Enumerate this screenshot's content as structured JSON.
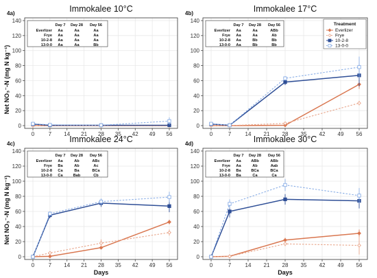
{
  "figure": {
    "ylabel": "Net NO₃⁻-N (mg N kg⁻¹)",
    "xlabel": "Days",
    "legend": {
      "title": "Treatment",
      "entries": [
        "Everlizer",
        "Frye",
        "10-2-8",
        "13-0-0"
      ]
    }
  },
  "chart_data": [
    {
      "type": "line",
      "tag": "4a)",
      "title": "Immokalee 10°C",
      "x": [
        0,
        7,
        28,
        56
      ],
      "xticks": [
        0,
        7,
        14,
        21,
        28,
        35,
        42,
        49,
        56
      ],
      "ylim": [
        0,
        140
      ],
      "yticks": [
        0,
        20,
        40,
        60,
        80,
        100,
        120,
        140
      ],
      "series": [
        {
          "name": "Everlizer",
          "values": [
            0,
            0,
            0,
            0
          ],
          "err": [
            0.5,
            0.5,
            0.5,
            0.5
          ]
        },
        {
          "name": "Frye",
          "values": [
            0,
            0,
            0,
            0
          ],
          "err": [
            0.5,
            0.5,
            0.5,
            0.5
          ]
        },
        {
          "name": "10-2-8",
          "values": [
            2,
            0.5,
            0.5,
            0.5
          ],
          "err": [
            1.5,
            0.8,
            0.8,
            1
          ]
        },
        {
          "name": "13-0-0",
          "values": [
            2.5,
            1,
            0.5,
            6
          ],
          "err": [
            1.5,
            0.8,
            0.8,
            5
          ]
        }
      ],
      "letters": {
        "columns": [
          "Day 7",
          "Day 28",
          "Day 56"
        ],
        "rows": [
          {
            "treatment": "Everlizer",
            "values": [
              "Aa",
              "Aa",
              "Aa"
            ]
          },
          {
            "treatment": "Frye",
            "values": [
              "Aa",
              "Aa",
              "Aa"
            ]
          },
          {
            "treatment": "10-2-8",
            "values": [
              "Aa",
              "Aa",
              "Aa"
            ]
          },
          {
            "treatment": "13-0-0",
            "values": [
              "Aa",
              "Aa",
              "Bb"
            ]
          }
        ]
      }
    },
    {
      "type": "line",
      "tag": "4b)",
      "title": "Immokalee 17°C",
      "x": [
        0,
        7,
        28,
        56
      ],
      "xticks": [
        0,
        7,
        14,
        21,
        28,
        35,
        42,
        49,
        56
      ],
      "ylim": [
        0,
        140
      ],
      "yticks": [
        0,
        20,
        40,
        60,
        80,
        100,
        120,
        140
      ],
      "series": [
        {
          "name": "Everlizer",
          "values": [
            0,
            0,
            0.5,
            55
          ],
          "err": [
            0.5,
            0.5,
            1,
            6
          ]
        },
        {
          "name": "Frye",
          "values": [
            0,
            0,
            3,
            30
          ],
          "err": [
            0.5,
            0.5,
            2,
            3
          ]
        },
        {
          "name": "10-2-8",
          "values": [
            2,
            0.5,
            58,
            67
          ],
          "err": [
            1.5,
            0.8,
            4,
            15
          ]
        },
        {
          "name": "13-0-0",
          "values": [
            2.5,
            0.5,
            63,
            78
          ],
          "err": [
            1.5,
            0.8,
            3,
            14
          ]
        }
      ],
      "letters": {
        "columns": [
          "Day 7",
          "Day 28",
          "Day 56"
        ],
        "rows": [
          {
            "treatment": "Everlizer",
            "values": [
              "Aa",
              "Aa",
              "ABb"
            ]
          },
          {
            "treatment": "Frye",
            "values": [
              "Aa",
              "Aa",
              "Ab"
            ]
          },
          {
            "treatment": "10-2-8",
            "values": [
              "Aa",
              "Bb",
              "Bb"
            ]
          },
          {
            "treatment": "13-0-0",
            "values": [
              "Aa",
              "Bb",
              "Bb"
            ]
          }
        ]
      }
    },
    {
      "type": "line",
      "tag": "4c)",
      "title": "Immokalee 24°C",
      "x": [
        0,
        7,
        28,
        56
      ],
      "xticks": [
        0,
        7,
        14,
        21,
        28,
        35,
        42,
        49,
        56
      ],
      "ylim": [
        0,
        140
      ],
      "yticks": [
        0,
        20,
        40,
        60,
        80,
        100,
        120,
        140
      ],
      "series": [
        {
          "name": "Everlizer",
          "values": [
            0,
            0.5,
            12,
            46
          ],
          "err": [
            0.5,
            1,
            2,
            3
          ]
        },
        {
          "name": "Frye",
          "values": [
            0,
            5,
            18,
            32
          ],
          "err": [
            0.5,
            2,
            5,
            4
          ]
        },
        {
          "name": "10-2-8",
          "values": [
            0,
            55,
            71,
            67
          ],
          "err": [
            0.5,
            4,
            5,
            8
          ]
        },
        {
          "name": "13-0-0",
          "values": [
            0,
            57,
            73,
            79
          ],
          "err": [
            0.5,
            3,
            4,
            7
          ]
        }
      ],
      "letters": {
        "columns": [
          "Day 7",
          "Day 28",
          "Day 56"
        ],
        "rows": [
          {
            "treatment": "Everlizer",
            "values": [
              "Aa",
              "Ab",
              "ABc"
            ]
          },
          {
            "treatment": "Frye",
            "values": [
              "Ba",
              "Ab",
              "Ac"
            ]
          },
          {
            "treatment": "10-2-8",
            "values": [
              "Ca",
              "Ba",
              "BCa"
            ]
          },
          {
            "treatment": "13-0-0",
            "values": [
              "Ca",
              "Bab",
              "Cb"
            ]
          }
        ]
      }
    },
    {
      "type": "line",
      "tag": "4d)",
      "title": "Immokalee 30°C",
      "x": [
        0,
        7,
        28,
        56
      ],
      "xticks": [
        0,
        7,
        14,
        21,
        28,
        35,
        42,
        49,
        56
      ],
      "ylim": [
        0,
        140
      ],
      "yticks": [
        0,
        20,
        40,
        60,
        80,
        100,
        120,
        140
      ],
      "series": [
        {
          "name": "Everlizer",
          "values": [
            0,
            0.5,
            22,
            31
          ],
          "err": [
            0.5,
            1,
            3,
            5
          ]
        },
        {
          "name": "Frye",
          "values": [
            0,
            0.5,
            17,
            15
          ],
          "err": [
            0.5,
            1,
            3,
            12
          ]
        },
        {
          "name": "10-2-8",
          "values": [
            0,
            60,
            76,
            74
          ],
          "err": [
            0.5,
            8,
            7,
            10
          ]
        },
        {
          "name": "13-0-0",
          "values": [
            0,
            70,
            95,
            81
          ],
          "err": [
            0.5,
            6,
            8,
            10
          ]
        }
      ],
      "letters": {
        "columns": [
          "Day 7",
          "Day 28",
          "Day 56"
        ],
        "rows": [
          {
            "treatment": "Everlizer",
            "values": [
              "Aa",
              "ABb",
              "ABb"
            ]
          },
          {
            "treatment": "Frye",
            "values": [
              "Aa",
              "Ab",
              "Aab"
            ]
          },
          {
            "treatment": "10-2-8",
            "values": [
              "Ba",
              "BCa",
              "BCa"
            ]
          },
          {
            "treatment": "13-0-0",
            "values": [
              "Ba",
              "Ca",
              "Ca"
            ]
          }
        ]
      }
    }
  ],
  "style": {
    "colors": {
      "Everlizer": "#d9764f",
      "Frye": "#e8a58a",
      "10-2-8": "#2e4e96",
      "13-0-0": "#8aaee6"
    },
    "dashed": [
      "Frye",
      "13-0-0"
    ]
  }
}
